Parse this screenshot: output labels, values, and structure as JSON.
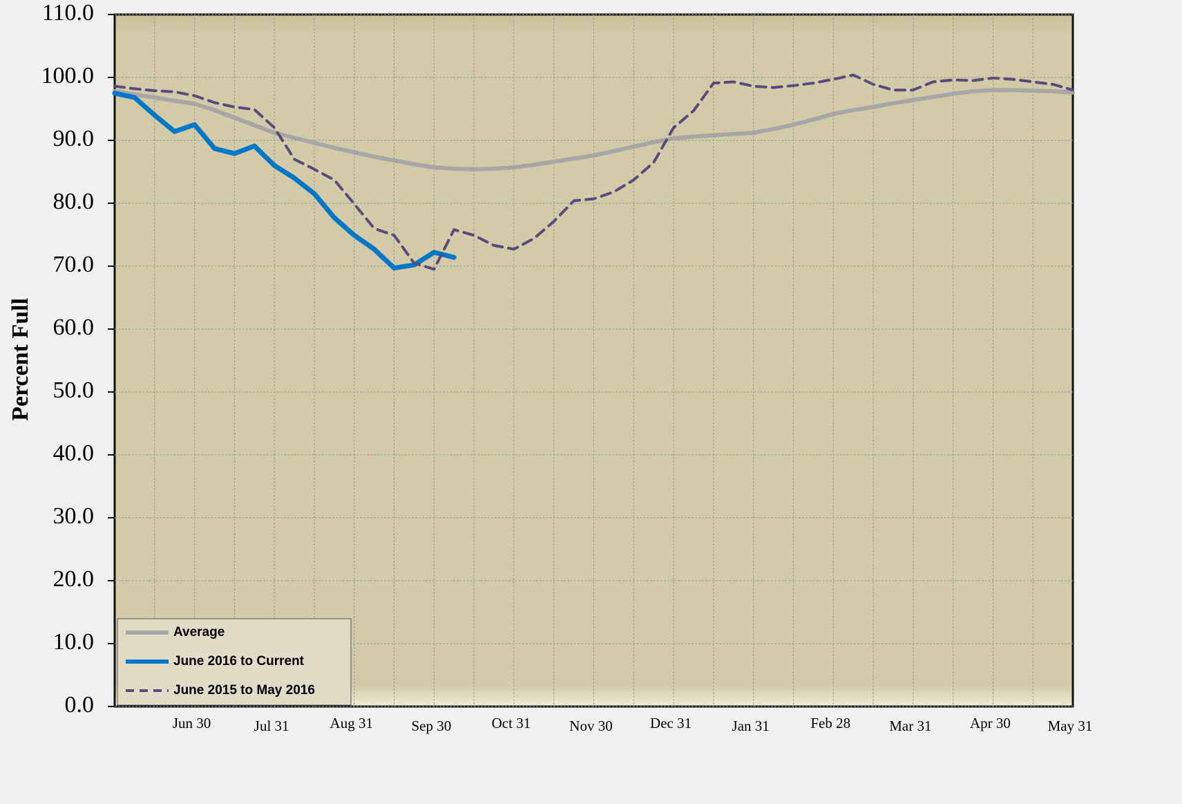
{
  "chart_data": {
    "type": "line",
    "y_label": "Percent Full",
    "categories": [
      null,
      null,
      null,
      null,
      "Jun 30",
      null,
      null,
      null,
      "Jul 31",
      null,
      null,
      null,
      "Aug 31",
      null,
      null,
      null,
      "Sep 30",
      null,
      null,
      null,
      "Oct 31",
      null,
      null,
      null,
      "Nov 30",
      null,
      null,
      null,
      "Dec 31",
      null,
      null,
      null,
      "Jan 31",
      null,
      null,
      null,
      "Feb 28",
      null,
      null,
      null,
      "Mar 31",
      null,
      null,
      null,
      "Apr 30",
      null,
      null,
      null,
      "May 31"
    ],
    "series": [
      {
        "name": "Average",
        "color": "#a6a6a6",
        "dash": false,
        "values": [
          97.8,
          97.3,
          96.8,
          96.3,
          95.8,
          94.8,
          93.6,
          92.4,
          91.2,
          90.4,
          89.6,
          88.8,
          88.1,
          87.4,
          86.8,
          86.2,
          85.7,
          85.5,
          85.4,
          85.5,
          85.7,
          86.1,
          86.6,
          87.1,
          87.6,
          88.3,
          89.0,
          89.7,
          90.3,
          90.6,
          90.8,
          91.0,
          91.2,
          91.8,
          92.5,
          93.3,
          94.2,
          94.8,
          95.3,
          95.9,
          96.4,
          96.9,
          97.4,
          97.8,
          98.0,
          98.0,
          97.9,
          97.8,
          97.6
        ]
      },
      {
        "name": "June 2016 to Current",
        "color": "#0077c8",
        "dash": false,
        "values": [
          97.5,
          96.8,
          94.0,
          91.4,
          92.5,
          88.7,
          87.9,
          89.1,
          86.0,
          84.0,
          81.5,
          77.7,
          74.9,
          72.7,
          69.7,
          70.2,
          72.2,
          71.4,
          null,
          null,
          null,
          null,
          null,
          null,
          null,
          null,
          null,
          null,
          null,
          null,
          null,
          null,
          null,
          null,
          null,
          null,
          null,
          null,
          null,
          null,
          null,
          null,
          null,
          null,
          null,
          null,
          null,
          null,
          null
        ]
      },
      {
        "name": "June 2015 to May 2016",
        "color": "#5b4a7d",
        "dash": true,
        "values": [
          98.6,
          98.2,
          97.9,
          97.7,
          97.1,
          96.0,
          95.3,
          94.9,
          92.0,
          87.0,
          85.4,
          83.7,
          79.9,
          76.0,
          74.9,
          70.5,
          69.5,
          75.8,
          74.9,
          73.3,
          72.7,
          74.4,
          77.1,
          80.4,
          80.7,
          81.8,
          83.7,
          86.5,
          92.0,
          94.7,
          99.1,
          99.3,
          98.6,
          98.4,
          98.7,
          99.1,
          99.7,
          100.4,
          98.9,
          98.0,
          98.0,
          99.3,
          99.6,
          99.5,
          99.9,
          99.7,
          99.3,
          98.9,
          98.0
        ]
      }
    ],
    "ylim": [
      0,
      110
    ],
    "yticks": [
      {
        "value": 0,
        "label": "0.0"
      },
      {
        "value": 10,
        "label": "10.0"
      },
      {
        "value": 20,
        "label": "20.0"
      },
      {
        "value": 30,
        "label": "30.0"
      },
      {
        "value": 40,
        "label": "40.0"
      },
      {
        "value": 50,
        "label": "50.0"
      },
      {
        "value": 60,
        "label": "60.0"
      },
      {
        "value": 70,
        "label": "70.0"
      },
      {
        "value": 80,
        "label": "80.0"
      },
      {
        "value": 90,
        "label": "90.0"
      },
      {
        "value": 100,
        "label": "100.0"
      },
      {
        "value": 110,
        "label": "110.0"
      }
    ],
    "grid": true,
    "legend": "lower left"
  }
}
